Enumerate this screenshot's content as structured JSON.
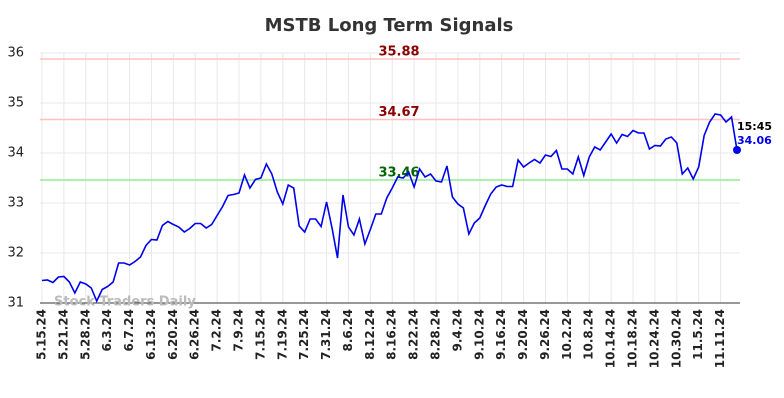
{
  "chart_data": {
    "type": "line",
    "title": "MSTB Long Term Signals",
    "watermark": "Stock Traders Daily",
    "categories": [
      "5.15.24",
      null,
      null,
      null,
      "5.21.24",
      null,
      null,
      null,
      "5.28.24",
      null,
      null,
      null,
      "6.3.24",
      null,
      null,
      null,
      "6.7.24",
      null,
      null,
      null,
      "6.13.24",
      null,
      null,
      null,
      "6.20.24",
      null,
      null,
      null,
      "6.26.24",
      null,
      null,
      null,
      "7.2.24",
      null,
      null,
      null,
      "7.9.24",
      null,
      null,
      null,
      "7.15.24",
      null,
      null,
      null,
      "7.19.24",
      null,
      null,
      null,
      "7.25.24",
      null,
      null,
      null,
      "7.31.24",
      null,
      null,
      null,
      "8.6.24",
      null,
      null,
      null,
      "8.12.24",
      null,
      null,
      null,
      "8.16.24",
      null,
      null,
      null,
      "8.22.24",
      null,
      null,
      null,
      "8.28.24",
      null,
      null,
      null,
      "9.4.24",
      null,
      null,
      null,
      "9.10.24",
      null,
      null,
      null,
      "9.16.24",
      null,
      null,
      null,
      "9.20.24",
      null,
      null,
      null,
      "9.26.24",
      null,
      null,
      null,
      "10.2.24",
      null,
      null,
      null,
      "10.8.24",
      null,
      null,
      null,
      "10.14.24",
      null,
      null,
      null,
      "10.18.24",
      null,
      null,
      null,
      "10.24.24",
      null,
      null,
      null,
      "10.30.24",
      null,
      null,
      null,
      "11.5.24",
      null,
      null,
      null,
      "11.11.24",
      null,
      null,
      null
    ],
    "series": [
      {
        "color": "#0000ee",
        "values": [
          31.45,
          31.46,
          31.41,
          31.52,
          31.53,
          31.42,
          31.2,
          31.42,
          31.38,
          31.3,
          31.04,
          31.27,
          31.33,
          31.42,
          31.8,
          31.8,
          31.76,
          31.83,
          31.92,
          32.15,
          32.27,
          32.26,
          32.55,
          32.63,
          32.57,
          32.52,
          32.42,
          32.49,
          32.59,
          32.59,
          32.5,
          32.57,
          32.75,
          32.93,
          33.15,
          33.17,
          33.2,
          33.56,
          33.3,
          33.47,
          33.5,
          33.78,
          33.58,
          33.22,
          32.98,
          33.36,
          33.3,
          32.54,
          32.42,
          32.68,
          32.68,
          32.53,
          33.02,
          32.5,
          31.9,
          33.16,
          32.52,
          32.36,
          32.68,
          32.18,
          32.47,
          32.78,
          32.78,
          33.1,
          33.3,
          33.52,
          33.5,
          33.62,
          33.32,
          33.68,
          33.52,
          33.58,
          33.44,
          33.42,
          33.74,
          33.12,
          32.98,
          32.9,
          32.38,
          32.6,
          32.7,
          32.95,
          33.18,
          33.32,
          33.36,
          33.33,
          33.33,
          33.86,
          33.72,
          33.8,
          33.87,
          33.8,
          33.96,
          33.93,
          34.05,
          33.68,
          33.68,
          33.58,
          33.92,
          33.55,
          33.92,
          34.12,
          34.06,
          34.22,
          34.38,
          34.2,
          34.37,
          34.33,
          34.45,
          34.4,
          34.4,
          34.08,
          34.15,
          34.14,
          34.28,
          34.32,
          34.2,
          33.58,
          33.7,
          33.48,
          33.72,
          34.35,
          34.62,
          34.78,
          34.76,
          34.62,
          34.72,
          34.06
        ]
      }
    ],
    "last_time": "15:45",
    "hlines": [
      {
        "value": 35.88,
        "color": "#ffc0c0",
        "label_color": "#8b0000"
      },
      {
        "value": 34.67,
        "color": "#ffc0c0",
        "label_color": "#8b0000"
      },
      {
        "value": 33.46,
        "color": "#90ee90",
        "label_color": "#006400"
      }
    ],
    "ylim": [
      31,
      36
    ],
    "yticks": [
      31,
      32,
      33,
      34,
      35,
      36
    ],
    "grid": true
  }
}
